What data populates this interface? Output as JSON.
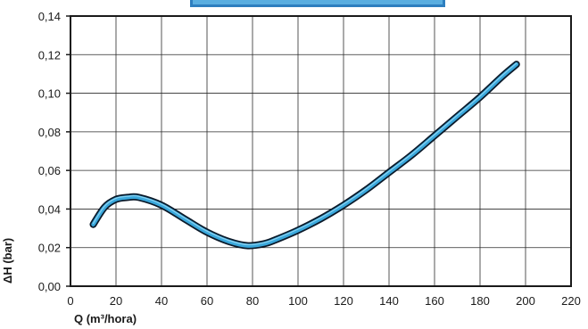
{
  "chart_data": {
    "type": "line",
    "title": "",
    "xlabel": "Q (m³/hora)",
    "ylabel": "ΔH (bar)",
    "xlim": [
      0,
      220
    ],
    "ylim": [
      0,
      0.14
    ],
    "x_ticks": [
      "0",
      "20",
      "40",
      "60",
      "80",
      "100",
      "120",
      "140",
      "160",
      "180",
      "200",
      "220"
    ],
    "y_ticks": [
      "0,00",
      "0,02",
      "0,04",
      "0,06",
      "0,08",
      "0,10",
      "0,12",
      "0,14"
    ],
    "grid": true,
    "series": [
      {
        "color": "#3aa8dc",
        "x": [
          10,
          15,
          20,
          25,
          30,
          40,
          50,
          60,
          70,
          78,
          85,
          90,
          100,
          110,
          120,
          130,
          140,
          150,
          160,
          170,
          180,
          190,
          196
        ],
        "y": [
          0.032,
          0.041,
          0.045,
          0.046,
          0.046,
          0.042,
          0.035,
          0.028,
          0.023,
          0.021,
          0.022,
          0.024,
          0.029,
          0.035,
          0.042,
          0.05,
          0.059,
          0.068,
          0.078,
          0.088,
          0.098,
          0.109,
          0.115
        ]
      }
    ],
    "header_bar_color": "#2e7fbf"
  }
}
